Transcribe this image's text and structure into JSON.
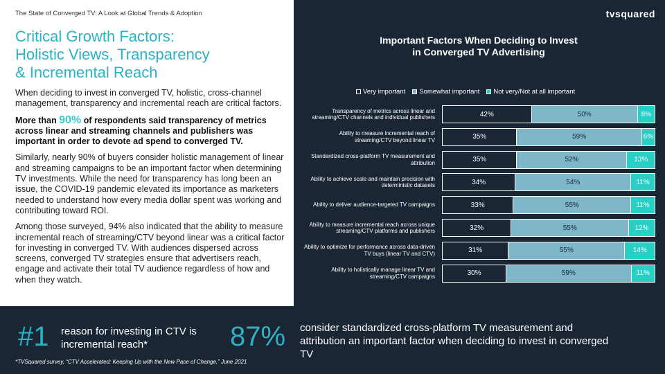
{
  "report_title": "The State of Converged TV: A Look at Global Trends & Adoption",
  "logo": "tvsquared",
  "headline": [
    "Critical Growth Factors:",
    "Holistic Views, Transparency",
    "& Incremental Reach"
  ],
  "body": {
    "p1": "When deciding to invest in converged TV, holistic, cross-channel management, transparency and incremental reach are critical factors.",
    "p2_pre": "More than ",
    "p2_highlight": "90%",
    "p2_post": " of respondents said transparency of metrics across linear and streaming channels and publishers was important in order to devote ad spend to converged TV.",
    "p3": "Similarly, nearly 90% of buyers consider holistic management of linear and streaming campaigns to be an important factor when determining TV investments. While the need for transparency has long been an issue, the COVID-19 pandemic elevated its importance as marketers needed to understand how every media dollar spent was working and contributing toward ROI.",
    "p4": "Among those surveyed, 94% also indicated that the ability to measure incremental reach of streaming/CTV beyond linear was a critical factor for investing in converged TV. With audiences dispersed across screens, converged TV strategies ensure that advertisers reach, engage and activate their total TV audience regardless of how and when they watch."
  },
  "colors": {
    "very": "#1b2634",
    "somewhat": "#7eb7c9",
    "not": "#27cfc4",
    "accent": "#2ab3c4"
  },
  "chart_data": {
    "type": "bar",
    "orientation": "horizontal",
    "stacked": true,
    "title": [
      "Important Factors When Deciding to Invest",
      "in Converged TV Advertising"
    ],
    "categories": [
      "Transparency of metrics across linear and streaming/CTV channels and individual publishers",
      "Ability to measure incremental reach of streaming/CTV beyond linear TV",
      "Standardized cross-platform TV measurement and attribution",
      "Ability to achieve scale and maintain precision with deterministic datasets",
      "Ability to deliver audience-targeted TV campaigns",
      "Ability to measure incremental reach across unique streaming/CTV platforms and publishers",
      "Ability to optimize for performance across data-driven TV buys (linear TV and CTV)",
      "Ability to holistically manage linear TV and streaming/CTV campaigns"
    ],
    "series": [
      {
        "name": "Very important",
        "key": "very",
        "values": [
          42,
          35,
          35,
          34,
          33,
          32,
          31,
          30
        ]
      },
      {
        "name": "Somewhat important",
        "key": "some",
        "values": [
          50,
          59,
          52,
          54,
          55,
          55,
          55,
          59
        ]
      },
      {
        "name": "Not very/Not at all important",
        "key": "not",
        "values": [
          8,
          6,
          13,
          11,
          11,
          12,
          14,
          11
        ]
      }
    ],
    "value_suffix": "%",
    "legend_position": "top"
  },
  "stats": {
    "stat1_number": "#1",
    "stat1_text": "reason for investing in CTV is incremental reach*",
    "stat2_number": "87%",
    "stat2_text": "consider  standardized cross-platform TV measurement and attribution an important factor when deciding to invest in converged TV"
  },
  "footnote": "*TVSquared survey, “CTV Accelerated: Keeping Up with the New Pace of Change,” June 2021"
}
